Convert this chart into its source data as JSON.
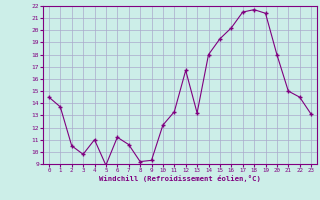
{
  "x_data": [
    0,
    1,
    2,
    3,
    4,
    5,
    6,
    7,
    8,
    9,
    10,
    11,
    12,
    13,
    14,
    15,
    16,
    17,
    18,
    19,
    20,
    21,
    22,
    23
  ],
  "y_data": [
    14.5,
    13.7,
    10.5,
    9.8,
    11.0,
    8.9,
    11.2,
    10.6,
    9.2,
    9.3,
    12.2,
    13.3,
    16.7,
    13.2,
    18.0,
    19.3,
    20.2,
    21.5,
    21.7,
    21.4,
    18.0,
    15.0,
    14.5,
    13.1
  ],
  "ylim": [
    9,
    22
  ],
  "xlim": [
    -0.5,
    23.5
  ],
  "yticks": [
    9,
    10,
    11,
    12,
    13,
    14,
    15,
    16,
    17,
    18,
    19,
    20,
    21,
    22
  ],
  "xticks": [
    0,
    1,
    2,
    3,
    4,
    5,
    6,
    7,
    8,
    9,
    10,
    11,
    12,
    13,
    14,
    15,
    16,
    17,
    18,
    19,
    20,
    21,
    22,
    23
  ],
  "xlabel": "Windchill (Refroidissement éolien,°C)",
  "line_color": "#800080",
  "marker_color": "#800080",
  "bg_color": "#cceee8",
  "grid_color": "#aaaacc",
  "spine_color": "#800080"
}
